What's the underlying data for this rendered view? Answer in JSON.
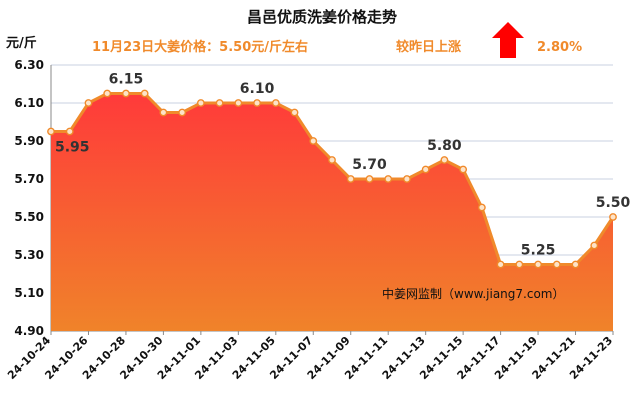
{
  "header": {
    "title": "昌邑优质洗姜价格走势",
    "price_note": "11月23日大姜价格：5.50元/斤左右",
    "change_label": "较昨日上涨",
    "change_value": "2.80%",
    "change_direction": "up-arrow-icon",
    "change_color": "#ff0000"
  },
  "watermark": "中姜网监制（www.jiang7.com）",
  "colors": {
    "line": "#f08a2b",
    "marker_fill": "#fde3c8",
    "area_top": "#ff3a3a",
    "area_bottom": "#f0832a",
    "grid": "#c8d0e0"
  },
  "chart_data": {
    "type": "area",
    "ylabel": "元/斤",
    "ylim": [
      4.9,
      6.3
    ],
    "yticks": [
      "6.30",
      "6.10",
      "5.90",
      "5.70",
      "5.50",
      "5.30",
      "5.10",
      "4.90"
    ],
    "grid": true,
    "x": [
      "24-10-24",
      "24-10-25",
      "24-10-26",
      "24-10-27",
      "24-10-28",
      "24-10-29",
      "24-10-30",
      "24-10-31",
      "24-11-01",
      "24-11-02",
      "24-11-03",
      "24-11-04",
      "24-11-05",
      "24-11-06",
      "24-11-07",
      "24-11-08",
      "24-11-09",
      "24-11-10",
      "24-11-11",
      "24-11-12",
      "24-11-13",
      "24-11-14",
      "24-11-15",
      "24-11-16",
      "24-11-17",
      "24-11-18",
      "24-11-19",
      "24-11-20",
      "24-11-21",
      "24-11-22",
      "24-11-23"
    ],
    "xticks": [
      "24-10-24",
      "24-10-26",
      "24-10-28",
      "24-10-30",
      "24-11-01",
      "24-11-03",
      "24-11-05",
      "24-11-07",
      "24-11-09",
      "24-11-11",
      "24-11-13",
      "24-11-15",
      "24-11-17",
      "24-11-19",
      "24-11-21",
      "24-11-23"
    ],
    "values": [
      5.95,
      5.95,
      6.1,
      6.15,
      6.15,
      6.15,
      6.05,
      6.05,
      6.1,
      6.1,
      6.1,
      6.1,
      6.1,
      6.05,
      5.9,
      5.8,
      5.7,
      5.7,
      5.7,
      5.7,
      5.75,
      5.8,
      5.75,
      5.55,
      5.25,
      5.25,
      5.25,
      5.25,
      5.25,
      5.35,
      5.5
    ],
    "data_labels": [
      {
        "index": 0,
        "text": "5.95",
        "pos": "below-right"
      },
      {
        "index": 4,
        "text": "6.15",
        "pos": "above"
      },
      {
        "index": 11,
        "text": "6.10",
        "pos": "above"
      },
      {
        "index": 17,
        "text": "5.70",
        "pos": "above"
      },
      {
        "index": 21,
        "text": "5.80",
        "pos": "above"
      },
      {
        "index": 26,
        "text": "5.25",
        "pos": "above"
      },
      {
        "index": 30,
        "text": "5.50",
        "pos": "above"
      }
    ]
  }
}
